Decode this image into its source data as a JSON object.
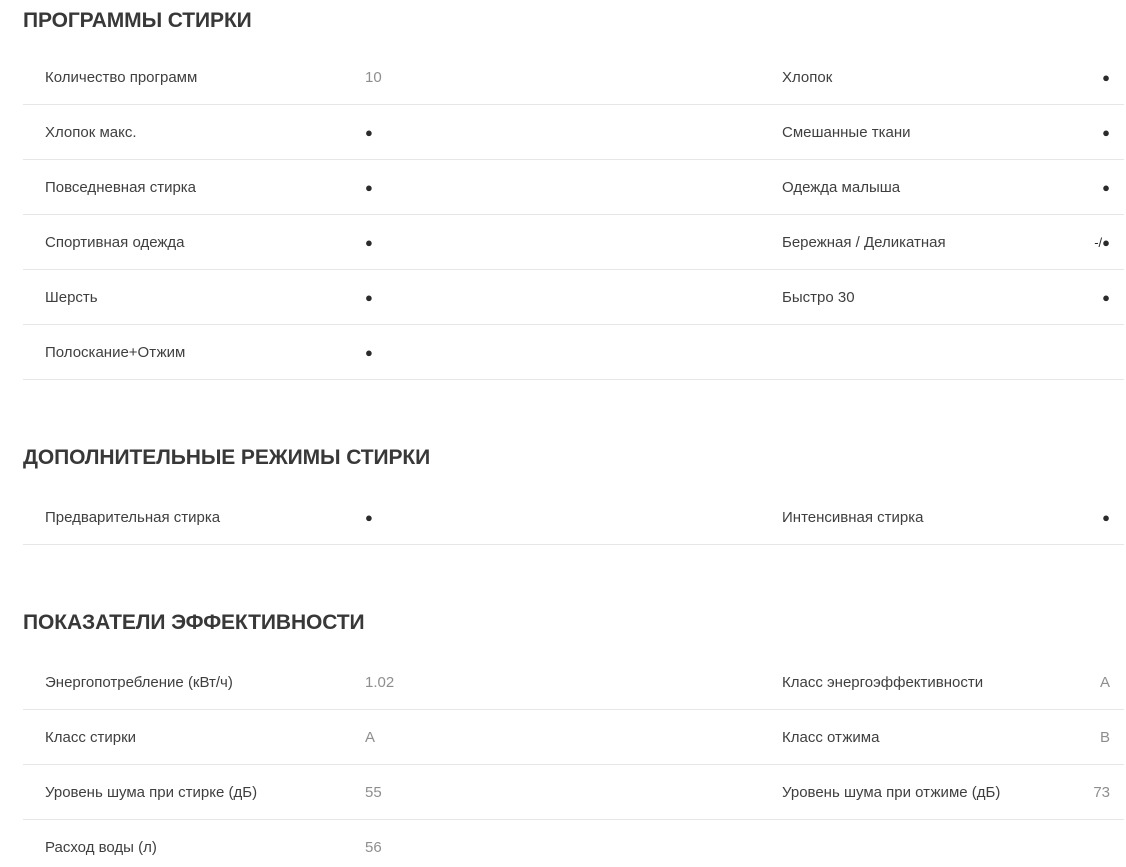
{
  "colors": {
    "background": "#ffffff",
    "section_title": "#383838",
    "label": "#3f3f3f",
    "value_text": "#8e8e8e",
    "bullet": "#2b2b2b",
    "separator": "#e6e6e6"
  },
  "sections": [
    {
      "title": "ПРОГРАММЫ СТИРКИ",
      "rows": [
        {
          "left": {
            "label": "Количество программ",
            "value": "10"
          },
          "right": {
            "label": "Хлопок",
            "value": "●"
          }
        },
        {
          "left": {
            "label": "Хлопок макс.",
            "value": "●"
          },
          "right": {
            "label": "Смешанные ткани",
            "value": "●"
          }
        },
        {
          "left": {
            "label": "Повседневная стирка",
            "value": "●"
          },
          "right": {
            "label": "Одежда малыша",
            "value": "●"
          }
        },
        {
          "left": {
            "label": "Спортивная одежда",
            "value": "●"
          },
          "right": {
            "label": "Бережная / Деликатная",
            "value": "-/●"
          }
        },
        {
          "left": {
            "label": "Шерсть",
            "value": "●"
          },
          "right": {
            "label": "Быстро 30",
            "value": "●"
          }
        },
        {
          "left": {
            "label": "Полоскание+Отжим",
            "value": "●"
          },
          "right": {
            "label": "",
            "value": ""
          }
        }
      ]
    },
    {
      "title": "ДОПОЛНИТЕЛЬНЫЕ РЕЖИМЫ СТИРКИ",
      "rows": [
        {
          "left": {
            "label": "Предварительная стирка",
            "value": "●"
          },
          "right": {
            "label": "Интенсивная стирка",
            "value": "●"
          }
        }
      ]
    },
    {
      "title": "ПОКАЗАТЕЛИ ЭФФЕКТИВНОСТИ",
      "rows": [
        {
          "left": {
            "label": "Энергопотребление (кВт/ч)",
            "value": "1.02"
          },
          "right": {
            "label": "Класс энергоэффективности",
            "value": "A"
          }
        },
        {
          "left": {
            "label": "Класс стирки",
            "value": "A"
          },
          "right": {
            "label": "Класс отжима",
            "value": "B"
          }
        },
        {
          "left": {
            "label": "Уровень шума при стирке (дБ)",
            "value": "55"
          },
          "right": {
            "label": "Уровень шума при отжиме (дБ)",
            "value": "73"
          }
        },
        {
          "left": {
            "label": "Расход воды (л)",
            "value": "56"
          },
          "right": {
            "label": "",
            "value": ""
          }
        }
      ]
    }
  ]
}
